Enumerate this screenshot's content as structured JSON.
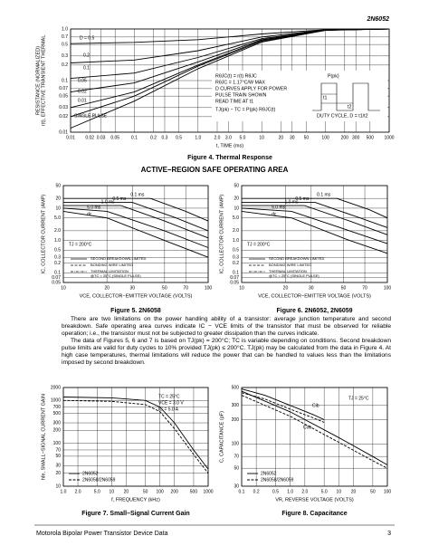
{
  "header": {
    "part": "2N6052"
  },
  "section_title": "ACTIVE–REGION SAFE OPERATING AREA",
  "paragraphs": [
    "There are two limitations on the power handling ability of a transistor: average junction temperature and second breakdown. Safe operating area curves indicate IC − VCE limits of the transistor that must be observed for reliable operation; i.e., the transistor must not be subjected to greater dissipation than the curves indicate.",
    "The data of Figures 5, 6 and 7 is based on TJ(pk) = 200°C; TC is variable depending on conditions. Second breakdown pulse limits are valid for duty cycles to 10% provided TJ(pk) ≤ 200°C. TJ(pk) may be calculated from the data in Figure 4. At high case temperatures, thermal limitations will reduce the power that can be handled to values less than the limitations imposed by second breakdown."
  ],
  "footer": {
    "text": "Motorola Bipolar Power Transistor Device Data",
    "page": "3"
  },
  "chart_data": [
    {
      "type": "line",
      "title": "Figure 4. Thermal Response",
      "xlabel": "t, TIME (ms)",
      "ylabel": [
        "r(t), EFFECTIVE TRANSIENT THERMAL",
        "RESISTANCE (NORMALIZED)"
      ],
      "log_x": true,
      "log_y": true,
      "grid": true,
      "curve_labels": true,
      "xlim": [
        0.01,
        1000
      ],
      "ylim": [
        0.01,
        1
      ],
      "xticks": [
        0.01,
        0.02,
        0.03,
        0.05,
        0.1,
        0.2,
        0.3,
        0.5,
        {
          "value": 1,
          "label": "1.0"
        },
        {
          "value": 2,
          "label": "2.0"
        },
        {
          "value": 3,
          "label": "3.0"
        },
        {
          "value": 5,
          "label": "5.0"
        },
        10,
        20,
        30,
        50,
        100,
        200,
        300,
        500,
        1000
      ],
      "yticks": [
        {
          "value": 1,
          "label": "1.0"
        },
        0.7,
        0.5,
        0.3,
        0.2,
        0.1,
        0.07,
        0.05,
        0.03,
        0.02,
        0.01
      ],
      "annotations": [
        "RθJC(t) = r(t) RθJC",
        "RθJC = 1.17°C/W MAX",
        "D CURVES APPLY FOR POWER",
        "PULSE TRAIN SHOWN",
        "READ TIME AT t1",
        "TJ(pk) − TC = P(pk) RθJC(t)",
        "P(pk)",
        "t1",
        "t2",
        "DUTY CYCLE, D = t1/t2"
      ],
      "series": [
        {
          "name": "D = 0.5",
          "color": "#000",
          "x": [
            0.01,
            0.1,
            1,
            10,
            100,
            1000
          ],
          "values": [
            0.52,
            0.55,
            0.62,
            0.8,
            0.97,
            1
          ]
        },
        {
          "name": "0.2",
          "color": "#000",
          "x": [
            0.01,
            0.1,
            1,
            10,
            100,
            1000
          ],
          "values": [
            0.22,
            0.25,
            0.38,
            0.7,
            0.96,
            1
          ]
        },
        {
          "name": "0.1",
          "color": "#000",
          "x": [
            0.01,
            0.1,
            1,
            10,
            100,
            1000
          ],
          "values": [
            0.11,
            0.14,
            0.28,
            0.65,
            0.95,
            1
          ]
        },
        {
          "name": "0.05",
          "color": "#000",
          "x": [
            0.01,
            0.1,
            1,
            10,
            100,
            1000
          ],
          "values": [
            0.06,
            0.09,
            0.23,
            0.62,
            0.95,
            1
          ]
        },
        {
          "name": "0.02",
          "color": "#000",
          "x": [
            0.01,
            0.1,
            1,
            10,
            100,
            1000
          ],
          "values": [
            0.03,
            0.06,
            0.2,
            0.6,
            0.95,
            1
          ]
        },
        {
          "name": "0.01",
          "color": "#000",
          "x": [
            0.01,
            0.1,
            1,
            10,
            100,
            1000
          ],
          "values": [
            0.02,
            0.05,
            0.19,
            0.58,
            0.95,
            1
          ]
        },
        {
          "name": "SINGLE PULSE",
          "color": "#000",
          "x": [
            0.01,
            0.1,
            1,
            10,
            100,
            1000
          ],
          "values": [
            0.012,
            0.04,
            0.17,
            0.56,
            0.94,
            1
          ]
        }
      ]
    },
    {
      "type": "line",
      "title": "Figure 5. 2N6058",
      "xlabel": "VCE, COLLECTOR−EMITTER VOLTAGE (VOLTS)",
      "ylabel": [
        "IC, COLLECTOR CURRENT (AMP)"
      ],
      "log_x": true,
      "log_y": true,
      "grid": true,
      "curve_labels": true,
      "xlim": [
        10,
        100
      ],
      "ylim": [
        0.05,
        50
      ],
      "xticks": [
        10,
        20,
        30,
        50,
        70,
        100
      ],
      "yticks": [
        50,
        20,
        10,
        {
          "value": 5,
          "label": "5.0"
        },
        {
          "value": 2,
          "label": "2.0"
        },
        {
          "value": 1,
          "label": "1.0"
        },
        0.5,
        0.3,
        0.2,
        0.1,
        0.07,
        0.05
      ],
      "annotations": [
        "TJ = 200°C"
      ],
      "legend_items": [
        {
          "label": [
            "SECOND BREAKDOWN LIMITED"
          ],
          "dash": "solid"
        },
        {
          "label": [
            "BONDING WIRE LIMITED"
          ],
          "dash": "dashed"
        },
        {
          "label": [
            "THERMAL LIMITATION",
            "@TC = 25°C (SINGLE PULSE)"
          ],
          "dash": "dashdot"
        }
      ],
      "series": [
        {
          "name": "0.1 ms",
          "color": "#000",
          "x": [
            10,
            40,
            70,
            100
          ],
          "values": [
            20,
            20,
            8,
            4
          ]
        },
        {
          "name": "0.5 ms",
          "color": "#000",
          "x": [
            10,
            30,
            60,
            100
          ],
          "values": [
            15,
            15,
            5,
            2
          ]
        },
        {
          "name": "1.0 ms",
          "color": "#000",
          "x": [
            10,
            25,
            50,
            100
          ],
          "values": [
            12,
            12,
            4,
            1.2
          ]
        },
        {
          "name": "5.0 ms",
          "color": "#000",
          "x": [
            10,
            20,
            50,
            100
          ],
          "values": [
            10,
            8,
            2,
            0.6
          ]
        },
        {
          "name": "dc",
          "color": "#000",
          "x": [
            10,
            20,
            50,
            100
          ],
          "values": [
            8,
            5,
            1,
            0.3
          ]
        }
      ]
    },
    {
      "type": "line",
      "title": "Figure 6. 2N6052, 2N6059",
      "xlabel": "VCE, COLLECTOR−EMITTER VOLTAGE (VOLTS)",
      "ylabel": [
        "IC, COLLECTOR CURRENT (AMP)"
      ],
      "log_x": true,
      "log_y": true,
      "grid": true,
      "curve_labels": true,
      "xlim": [
        10,
        100
      ],
      "ylim": [
        0.05,
        50
      ],
      "xticks": [
        10,
        20,
        30,
        50,
        70,
        100
      ],
      "yticks": [
        50,
        20,
        10,
        {
          "value": 5,
          "label": "5.0"
        },
        {
          "value": 2,
          "label": "2.0"
        },
        {
          "value": 1,
          "label": "1.0"
        },
        0.5,
        0.3,
        0.2,
        0.1,
        0.07,
        0.05
      ],
      "annotations": [
        "TJ = 200°C"
      ],
      "legend_items": [
        {
          "label": [
            "SECOND BREAKDOWN LIMITED"
          ],
          "dash": "solid"
        },
        {
          "label": [
            "BONDING WIRE LIMITED"
          ],
          "dash": "dashed"
        },
        {
          "label": [
            "THERMAL LIMITATION",
            "@TC = 25°C (SINGLE PULSE)"
          ],
          "dash": "dashdot"
        }
      ],
      "series": [
        {
          "name": "0.1 ms",
          "color": "#000",
          "x": [
            10,
            45,
            75,
            100
          ],
          "values": [
            20,
            20,
            9,
            5
          ]
        },
        {
          "name": "0.5 ms",
          "color": "#000",
          "x": [
            10,
            32,
            65,
            100
          ],
          "values": [
            15,
            15,
            5,
            2.5
          ]
        },
        {
          "name": "1.0 ms",
          "color": "#000",
          "x": [
            10,
            27,
            55,
            100
          ],
          "values": [
            12,
            12,
            4,
            1.5
          ]
        },
        {
          "name": "5.0 ms",
          "color": "#000",
          "x": [
            10,
            22,
            55,
            100
          ],
          "values": [
            10,
            8,
            2,
            0.8
          ]
        },
        {
          "name": "dc",
          "color": "#000",
          "x": [
            10,
            22,
            55,
            100
          ],
          "values": [
            8,
            5,
            1,
            0.4
          ]
        }
      ]
    },
    {
      "type": "line",
      "title": "Figure 7. Small–Signal Current Gain",
      "xlabel": "f, FREQUENCY (kHz)",
      "ylabel": [
        "hfe, SMALL−SIGNAL CURRENT GAIN"
      ],
      "log_x": true,
      "log_y": true,
      "grid": true,
      "legend": "lower left",
      "xlim": [
        1,
        1000
      ],
      "ylim": [
        10,
        2000
      ],
      "xticks": [
        {
          "value": 1,
          "label": "1.0"
        },
        {
          "value": 2,
          "label": "2.0"
        },
        {
          "value": 5,
          "label": "5.0"
        },
        10,
        20,
        50,
        100,
        200,
        500,
        1000
      ],
      "yticks": [
        2000,
        1000,
        700,
        500,
        300,
        200,
        100,
        70,
        50,
        30,
        20,
        10
      ],
      "annotations": [
        "TC = 25°C",
        "VCE = 3.0 V",
        "IC = 5.0 A"
      ],
      "series": [
        {
          "name": "2N6052",
          "color": "#000",
          "dash": "solid",
          "x": [
            1,
            10,
            50,
            100,
            200,
            500,
            1000
          ],
          "values": [
            1200,
            1150,
            1000,
            700,
            300,
            70,
            25
          ]
        },
        {
          "name": "2N6058/2N6059",
          "color": "#000",
          "dash": "dashed",
          "x": [
            1,
            10,
            50,
            100,
            200,
            500,
            1000
          ],
          "values": [
            1000,
            950,
            800,
            550,
            220,
            55,
            20
          ]
        }
      ]
    },
    {
      "type": "line",
      "title": "Figure 8. Capacitance",
      "xlabel": "VR, REVERSE VOLTAGE (VOLTS)",
      "ylabel": [
        "C, CAPACITANCE (pF)"
      ],
      "log_x": true,
      "log_y": true,
      "grid": true,
      "legend": "lower left",
      "xlim": [
        0.1,
        100
      ],
      "ylim": [
        30,
        500
      ],
      "xticks": [
        0.1,
        0.2,
        0.5,
        {
          "value": 1,
          "label": "1.0"
        },
        {
          "value": 2,
          "label": "2.0"
        },
        {
          "value": 5,
          "label": "5.0"
        },
        10,
        20,
        50,
        100
      ],
      "yticks": [
        500,
        300,
        200,
        100,
        70,
        50,
        30
      ],
      "annotations": [
        "TJ = 25°C",
        "Cib",
        "Cob"
      ],
      "series": [
        {
          "name": "2N6052",
          "color": "#000",
          "dash": "solid",
          "x": [
            0.1,
            0.3,
            1,
            3,
            5
          ],
          "values": [
            480,
            400,
            300,
            230,
            200
          ]
        },
        {
          "name": "2N6058/2N6059",
          "color": "#000",
          "dash": "dashed",
          "x": [
            0.1,
            0.3,
            1,
            3,
            5
          ],
          "values": [
            430,
            360,
            270,
            210,
            185
          ]
        },
        {
          "name": "2N6052",
          "color": "#000",
          "dash": "solid",
          "x": [
            0.1,
            1,
            10,
            50,
            100
          ],
          "values": [
            450,
            250,
            120,
            70,
            55
          ]
        },
        {
          "name": "2N6058/2N6059",
          "color": "#000",
          "dash": "dashed",
          "x": [
            0.1,
            1,
            10,
            50,
            100
          ],
          "values": [
            400,
            220,
            105,
            62,
            50
          ]
        }
      ]
    }
  ]
}
